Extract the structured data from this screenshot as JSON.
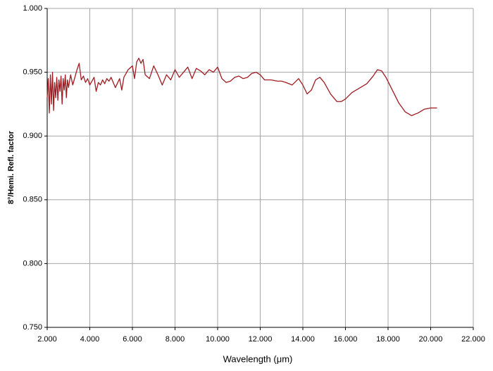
{
  "chart_data": {
    "type": "line",
    "x_label": "Wavelength (μm)",
    "y_label": "8°/Hemi. Refl. factor",
    "xlim": [
      2,
      22
    ],
    "ylim": [
      0.75,
      1.0
    ],
    "xticks": [
      {
        "value": 2,
        "label": "2.000"
      },
      {
        "value": 4,
        "label": "4.000"
      },
      {
        "value": 6,
        "label": "6.000"
      },
      {
        "value": 8,
        "label": "8.000"
      },
      {
        "value": 10,
        "label": "10.000"
      },
      {
        "value": 12,
        "label": "12.000"
      },
      {
        "value": 14,
        "label": "14.000"
      },
      {
        "value": 16,
        "label": "16.000"
      },
      {
        "value": 18,
        "label": "18.000"
      },
      {
        "value": 20,
        "label": "20.000"
      },
      {
        "value": 22,
        "label": "22.000"
      }
    ],
    "yticks": [
      {
        "value": 0.75,
        "label": "0.750"
      },
      {
        "value": 0.8,
        "label": "0.800"
      },
      {
        "value": 0.85,
        "label": "0.850"
      },
      {
        "value": 0.9,
        "label": "0.900"
      },
      {
        "value": 0.95,
        "label": "0.950"
      },
      {
        "value": 1.0,
        "label": "1.000"
      }
    ],
    "grid": true,
    "color": "#a01c22",
    "x": [
      2.0,
      2.05,
      2.1,
      2.15,
      2.2,
      2.25,
      2.3,
      2.35,
      2.4,
      2.45,
      2.5,
      2.55,
      2.6,
      2.65,
      2.7,
      2.75,
      2.8,
      2.85,
      2.9,
      2.95,
      3.0,
      3.1,
      3.2,
      3.3,
      3.4,
      3.5,
      3.6,
      3.7,
      3.8,
      3.9,
      4.0,
      4.1,
      4.2,
      4.3,
      4.4,
      4.5,
      4.6,
      4.7,
      4.8,
      4.9,
      5.0,
      5.2,
      5.4,
      5.5,
      5.6,
      5.8,
      6.0,
      6.1,
      6.2,
      6.3,
      6.4,
      6.5,
      6.6,
      6.8,
      7.0,
      7.2,
      7.4,
      7.6,
      7.8,
      8.0,
      8.2,
      8.4,
      8.6,
      8.8,
      9.0,
      9.2,
      9.4,
      9.6,
      9.8,
      10.0,
      10.2,
      10.4,
      10.6,
      10.8,
      11.0,
      11.2,
      11.4,
      11.6,
      11.8,
      12.0,
      12.2,
      12.5,
      12.8,
      13.0,
      13.2,
      13.5,
      13.8,
      14.0,
      14.2,
      14.4,
      14.6,
      14.8,
      15.0,
      15.3,
      15.6,
      15.8,
      16.0,
      16.3,
      16.6,
      17.0,
      17.3,
      17.5,
      17.7,
      17.9,
      18.2,
      18.5,
      18.8,
      19.1,
      19.4,
      19.7,
      20.0,
      20.3
    ],
    "values": [
      0.93,
      0.945,
      0.918,
      0.948,
      0.925,
      0.95,
      0.92,
      0.942,
      0.93,
      0.946,
      0.928,
      0.944,
      0.935,
      0.947,
      0.925,
      0.945,
      0.936,
      0.948,
      0.93,
      0.944,
      0.938,
      0.948,
      0.94,
      0.946,
      0.952,
      0.957,
      0.944,
      0.947,
      0.942,
      0.945,
      0.94,
      0.943,
      0.946,
      0.935,
      0.942,
      0.94,
      0.944,
      0.941,
      0.945,
      0.943,
      0.946,
      0.938,
      0.945,
      0.936,
      0.946,
      0.952,
      0.955,
      0.945,
      0.958,
      0.961,
      0.957,
      0.96,
      0.948,
      0.945,
      0.955,
      0.948,
      0.94,
      0.948,
      0.944,
      0.952,
      0.946,
      0.95,
      0.954,
      0.945,
      0.953,
      0.951,
      0.948,
      0.952,
      0.95,
      0.954,
      0.945,
      0.942,
      0.943,
      0.946,
      0.947,
      0.945,
      0.946,
      0.949,
      0.95,
      0.948,
      0.944,
      0.944,
      0.943,
      0.943,
      0.942,
      0.94,
      0.945,
      0.94,
      0.933,
      0.936,
      0.944,
      0.946,
      0.942,
      0.933,
      0.927,
      0.927,
      0.929,
      0.934,
      0.937,
      0.941,
      0.947,
      0.952,
      0.951,
      0.946,
      0.936,
      0.926,
      0.919,
      0.916,
      0.918,
      0.921,
      0.922,
      0.922
    ]
  }
}
